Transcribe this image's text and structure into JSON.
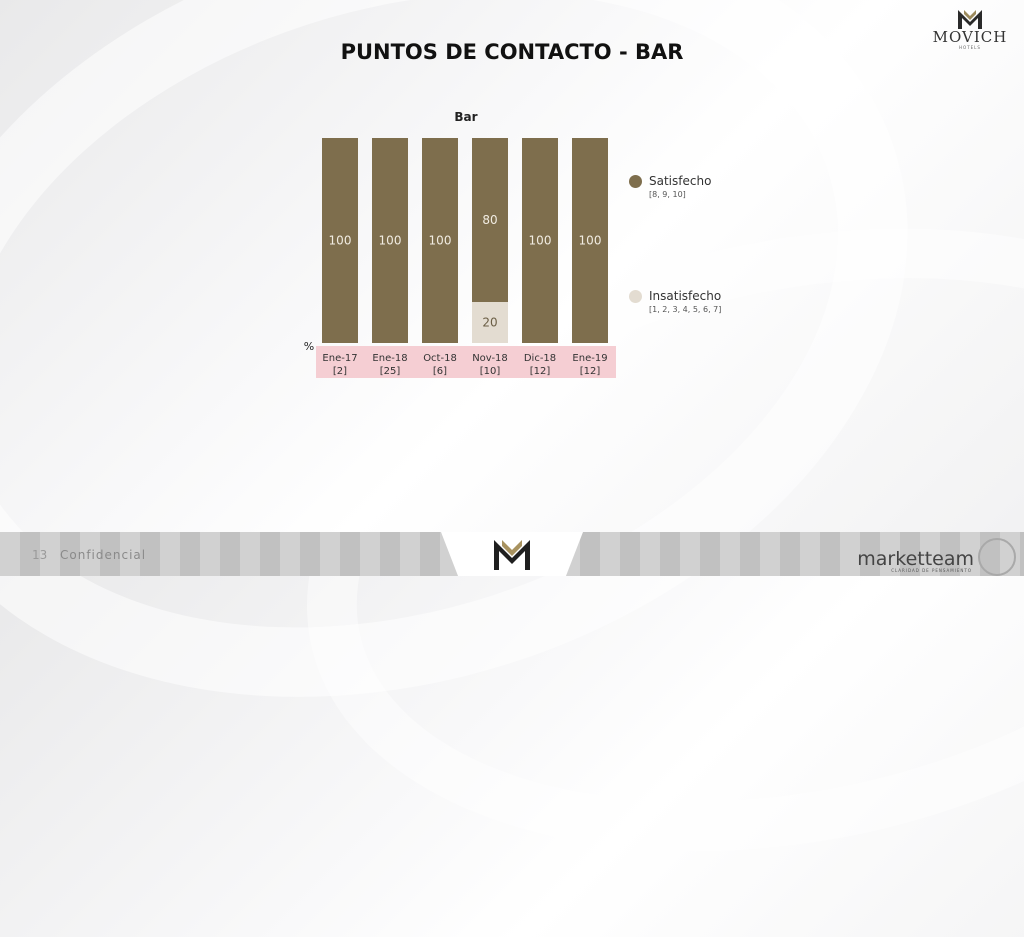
{
  "slide": {
    "title": "PUNTOS DE CONTACTO - BAR",
    "page_number": "13",
    "confidential": "Confidencial"
  },
  "logo": {
    "brand": "MOVICH",
    "sub": "HOTELS"
  },
  "footer_brand": {
    "name": "marketteam",
    "tagline": "CLARIDAD DE PENSAMIENTO"
  },
  "colors": {
    "satisfecho": "#7e6e4d",
    "insatisfecho": "#e3dcd1",
    "tick_bg": "#f5ced3"
  },
  "chart_data": {
    "type": "bar",
    "stacked": true,
    "title": "Bar",
    "ylabel": "%",
    "ylim": [
      0,
      100
    ],
    "categories": [
      "Ene-17",
      "Ene-18",
      "Oct-18",
      "Nov-18",
      "Dic-18",
      "Ene-19"
    ],
    "category_counts": [
      "[2]",
      "[25]",
      "[6]",
      "[10]",
      "[12]",
      "[12]"
    ],
    "series": [
      {
        "name": "Insatisfecho",
        "range": "[1, 2, 3, 4, 5, 6, 7]",
        "values": [
          0,
          0,
          0,
          20,
          0,
          0
        ],
        "color": "#e3dcd1"
      },
      {
        "name": "Satisfecho",
        "range": "[8, 9, 10]",
        "values": [
          100,
          100,
          100,
          80,
          100,
          100
        ],
        "color": "#7e6e4d"
      }
    ],
    "legend_position": "right"
  }
}
